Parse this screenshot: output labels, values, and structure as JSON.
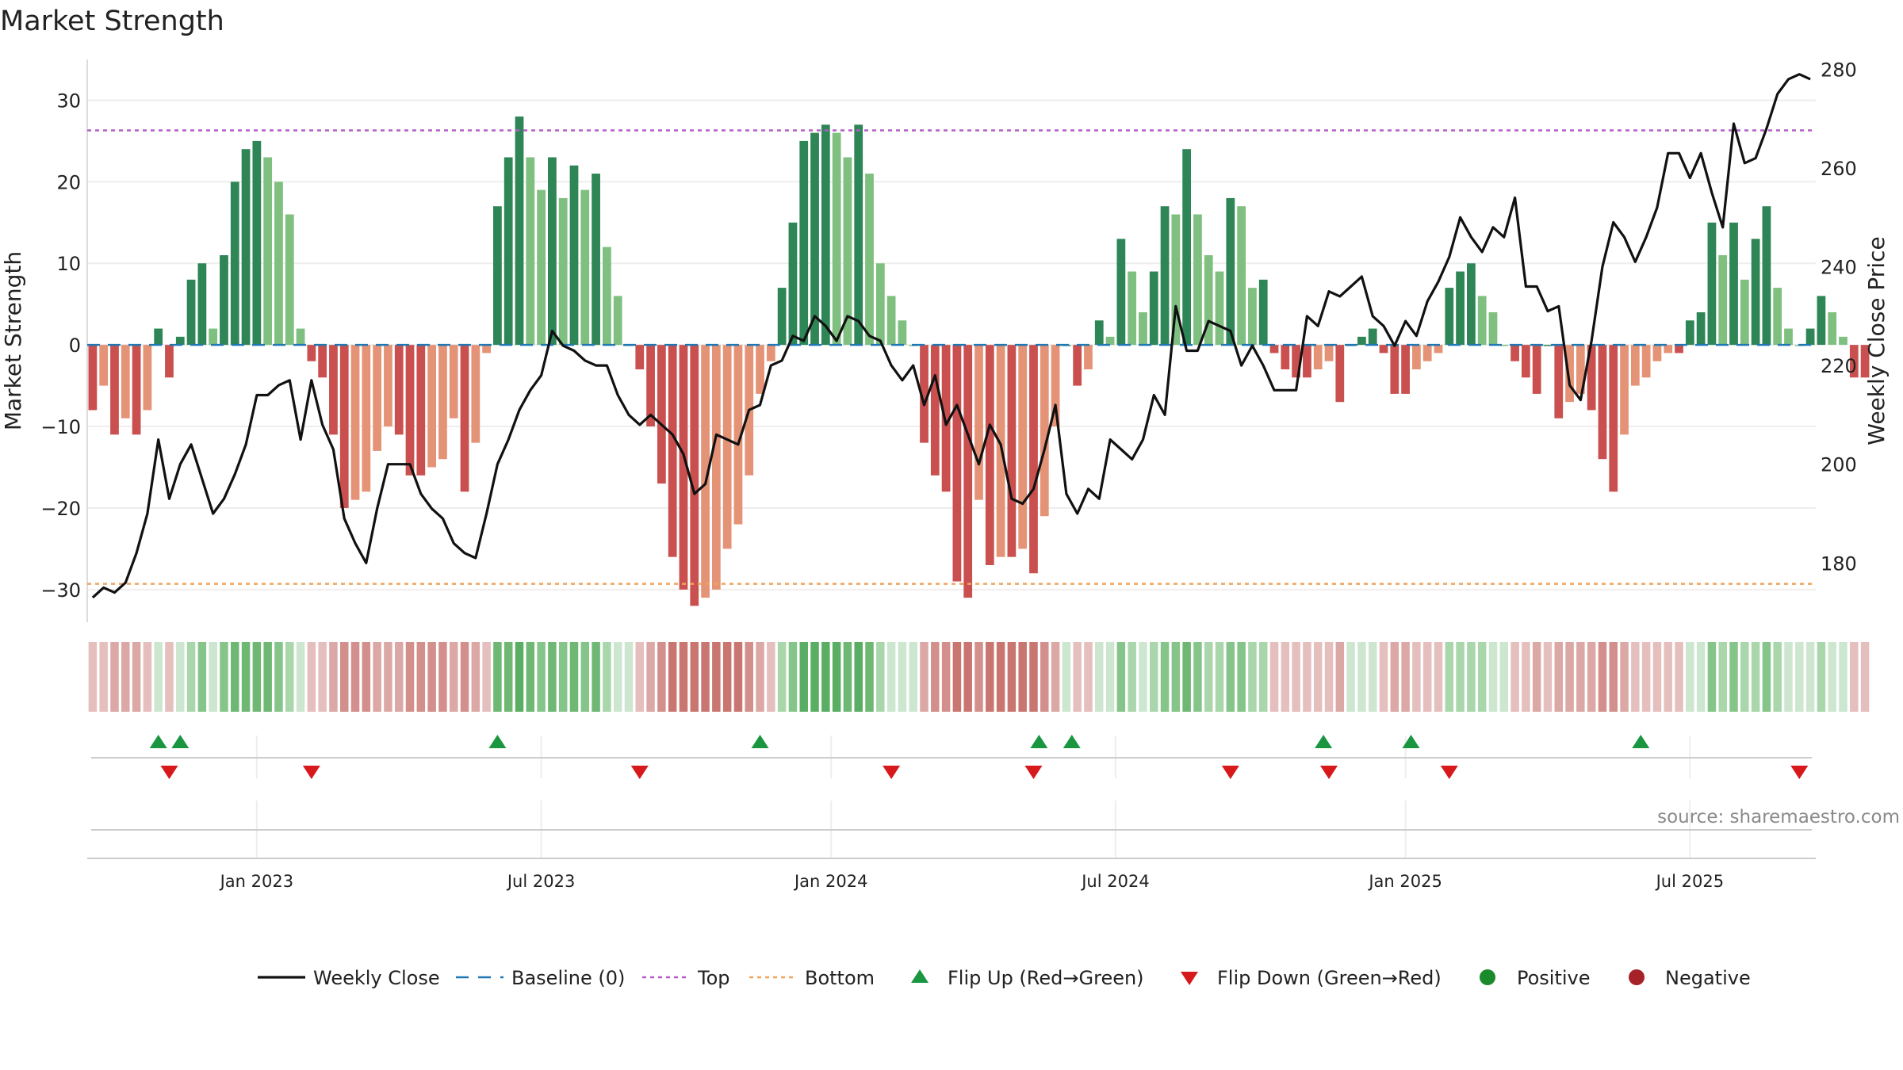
{
  "chart_data": {
    "type": "bar",
    "title": "Market Strength",
    "ylabel": "Market Strength",
    "y2label": "Weekly Close Price",
    "ylim": [
      -34,
      35
    ],
    "y2lim": [
      168,
      282
    ],
    "y_ticks": [
      30,
      20,
      10,
      0,
      -10,
      -20,
      -30
    ],
    "y_tick_labels": [
      "30",
      "20",
      "10",
      "0",
      "−10",
      "−20",
      "−30"
    ],
    "y2_ticks": [
      280,
      260,
      240,
      220,
      200,
      180
    ],
    "y2_tick_labels": [
      "280",
      "260",
      "240",
      "220",
      "200",
      "180"
    ],
    "top_level": 26.3,
    "bottom_level": -29.3,
    "x_start": "2022-10-10",
    "week_count": 158,
    "date_ticks": [
      {
        "label": "Jan 2023",
        "week": 15
      },
      {
        "label": "Jul 2023",
        "week": 41
      },
      {
        "label": "Jan 2024",
        "week": 67.5
      },
      {
        "label": "Jul 2024",
        "week": 93.5
      },
      {
        "label": "Jan 2025",
        "week": 120
      },
      {
        "label": "Jul 2025",
        "week": 146
      }
    ],
    "strength": [
      -8,
      -5,
      -11,
      -9,
      -11,
      -8,
      2,
      -4,
      1,
      8,
      10,
      2,
      11,
      20,
      24,
      25,
      23,
      20,
      16,
      2,
      -2,
      -4,
      -11,
      -20,
      -19,
      -18,
      -13,
      -10,
      -11,
      -16,
      -16,
      -15,
      -14,
      -9,
      -18,
      -12,
      -1,
      17,
      23,
      28,
      23,
      19,
      23,
      18,
      22,
      19,
      21,
      12,
      6,
      0,
      -3,
      -10,
      -17,
      -26,
      -30,
      -32,
      -31,
      -30,
      -25,
      -22,
      -16,
      -6,
      -2,
      7,
      15,
      25,
      26,
      27,
      26,
      23,
      27,
      21,
      10,
      6,
      3,
      0,
      -12,
      -16,
      -18,
      -29,
      -31,
      -19,
      -27,
      -26,
      -26,
      -25,
      -28,
      -21,
      -10,
      0,
      -5,
      -3,
      3,
      1,
      13,
      9,
      4,
      9,
      17,
      16,
      24,
      16,
      11,
      9,
      18,
      17,
      7,
      8,
      -1,
      -3,
      -4,
      -4,
      -3,
      -2,
      -7,
      0,
      1,
      2,
      -1,
      -6,
      -6,
      -3,
      -2,
      -1,
      7,
      9,
      10,
      6,
      4,
      0,
      -2,
      -4,
      -6,
      0,
      -9,
      -7,
      -6,
      -8,
      -14,
      -18,
      -11,
      -5,
      -4,
      -2,
      -1,
      -1,
      3,
      4,
      15,
      11,
      15,
      8,
      13,
      17,
      7,
      2,
      0,
      2,
      6,
      4,
      1,
      -4,
      -4
    ],
    "weekly_close": [
      173,
      175,
      174,
      176,
      182,
      190,
      205,
      193,
      200,
      204,
      197,
      190,
      193,
      198,
      204,
      214,
      214,
      216,
      217,
      205,
      217,
      208,
      203,
      189,
      184,
      180,
      191,
      200,
      200,
      200,
      194,
      191,
      189,
      184,
      182,
      181,
      190,
      200,
      205,
      211,
      215,
      218,
      227,
      224,
      223,
      221,
      220,
      220,
      214,
      210,
      208,
      210,
      208,
      206,
      202,
      194,
      196,
      206,
      205,
      204,
      211,
      212,
      220,
      221,
      226,
      225,
      230,
      228,
      225,
      230,
      229,
      226,
      225,
      220,
      217,
      220,
      212,
      218,
      208,
      212,
      206,
      200,
      208,
      204,
      193,
      192,
      195,
      203,
      212,
      194,
      190,
      195,
      193,
      205,
      203,
      201,
      205,
      214,
      210,
      232,
      223,
      223,
      229,
      228,
      227,
      220,
      224,
      220,
      215,
      215,
      215,
      230,
      228,
      235,
      234,
      236,
      238,
      230,
      228,
      224,
      229,
      226,
      233,
      237,
      242,
      250,
      246,
      243,
      248,
      246,
      254,
      236,
      236,
      231,
      232,
      216,
      213,
      225,
      240,
      249,
      246,
      241,
      246,
      252,
      263,
      263,
      258,
      263,
      255,
      248,
      269,
      261,
      262,
      268,
      275,
      278,
      279,
      278
    ],
    "band_shades": [
      "#e5bfbd",
      "#e5bfbd",
      "#dba8a5",
      "#dba8a5",
      "#dba8a5",
      "#e5bfbd",
      "#cde6cf",
      "#e5bfbd",
      "#cde6cf",
      "#a9d6ab",
      "#86c58a",
      "#cde6cf",
      "#86c58a",
      "#6eb874",
      "#6eb874",
      "#6eb874",
      "#6eb874",
      "#86c58a",
      "#a9d6ab",
      "#cde6cf",
      "#e5bfbd",
      "#e5bfbd",
      "#dba8a5",
      "#d28f8b",
      "#d28f8b",
      "#d28f8b",
      "#dba8a5",
      "#dba8a5",
      "#dba8a5",
      "#d28f8b",
      "#d28f8b",
      "#d28f8b",
      "#d28f8b",
      "#dba8a5",
      "#d28f8b",
      "#dba8a5",
      "#e5bfbd",
      "#6eb874",
      "#6eb874",
      "#5aae63",
      "#6eb874",
      "#86c58a",
      "#6eb874",
      "#86c58a",
      "#6eb874",
      "#86c58a",
      "#6eb874",
      "#a9d6ab",
      "#cde6cf",
      "#cde6cf",
      "#e5bfbd",
      "#dba8a5",
      "#d28f8b",
      "#c97671",
      "#c97671",
      "#c97671",
      "#c97671",
      "#c97671",
      "#c97671",
      "#c97671",
      "#d28f8b",
      "#dba8a5",
      "#e5bfbd",
      "#a9d6ab",
      "#86c58a",
      "#5aae63",
      "#5aae63",
      "#5aae63",
      "#5aae63",
      "#6eb874",
      "#5aae63",
      "#6eb874",
      "#a9d6ab",
      "#cde6cf",
      "#cde6cf",
      "#cde6cf",
      "#dba8a5",
      "#d28f8b",
      "#d28f8b",
      "#c97671",
      "#c97671",
      "#d28f8b",
      "#c97671",
      "#c97671",
      "#c97671",
      "#c97671",
      "#c97671",
      "#d28f8b",
      "#dba8a5",
      "#cde6cf",
      "#e5bfbd",
      "#e5bfbd",
      "#cde6cf",
      "#cde6cf",
      "#86c58a",
      "#a9d6ab",
      "#cde6cf",
      "#a9d6ab",
      "#86c58a",
      "#86c58a",
      "#6eb874",
      "#86c58a",
      "#a9d6ab",
      "#a9d6ab",
      "#86c58a",
      "#86c58a",
      "#a9d6ab",
      "#a9d6ab",
      "#e5bfbd",
      "#e5bfbd",
      "#e5bfbd",
      "#e5bfbd",
      "#e5bfbd",
      "#e5bfbd",
      "#dba8a5",
      "#cde6cf",
      "#cde6cf",
      "#cde6cf",
      "#e5bfbd",
      "#dba8a5",
      "#dba8a5",
      "#e5bfbd",
      "#e5bfbd",
      "#e5bfbd",
      "#a9d6ab",
      "#a9d6ab",
      "#a9d6ab",
      "#a9d6ab",
      "#cde6cf",
      "#cde6cf",
      "#e5bfbd",
      "#e5bfbd",
      "#dba8a5",
      "#e5bfbd",
      "#dba8a5",
      "#dba8a5",
      "#dba8a5",
      "#dba8a5",
      "#d28f8b",
      "#d28f8b",
      "#dba8a5",
      "#e5bfbd",
      "#e5bfbd",
      "#e5bfbd",
      "#e5bfbd",
      "#e5bfbd",
      "#cde6cf",
      "#cde6cf",
      "#86c58a",
      "#a9d6ab",
      "#86c58a",
      "#a9d6ab",
      "#a9d6ab",
      "#86c58a",
      "#a9d6ab",
      "#cde6cf",
      "#cde6cf",
      "#cde6cf",
      "#a9d6ab",
      "#cde6cf",
      "#cde6cf",
      "#e5bfbd",
      "#e5bfbd"
    ],
    "flip_up_weeks": [
      6,
      8,
      37,
      61,
      86.5,
      89.5,
      112.5,
      120.5,
      141.5
    ],
    "flip_down_weeks": [
      7,
      20,
      50,
      73,
      86,
      104,
      113,
      124,
      156
    ],
    "legend": [
      "Weekly Close",
      "Baseline (0)",
      "Top",
      "Bottom",
      "Flip Up (Red→Green)",
      "Flip Down (Green→Red)",
      "Positive",
      "Negative"
    ],
    "source": "source: sharemaestro.com"
  },
  "colors": {
    "pos_strong": "#2e8555",
    "pos_weak": "#7fbf7f",
    "neg_strong": "#c9504f",
    "neg_weak": "#e59377",
    "line": "#111111",
    "baseline": "#1f77b4",
    "top": "#b45cc8",
    "bottom": "#f0a35e",
    "flip_up": "#1a9641",
    "flip_down": "#d7191c",
    "positive_dot": "#1a8a2a",
    "negative_dot": "#a52228",
    "grid": "#eeeeee",
    "axis": "#cccccc",
    "source": "#8a8a8a"
  }
}
